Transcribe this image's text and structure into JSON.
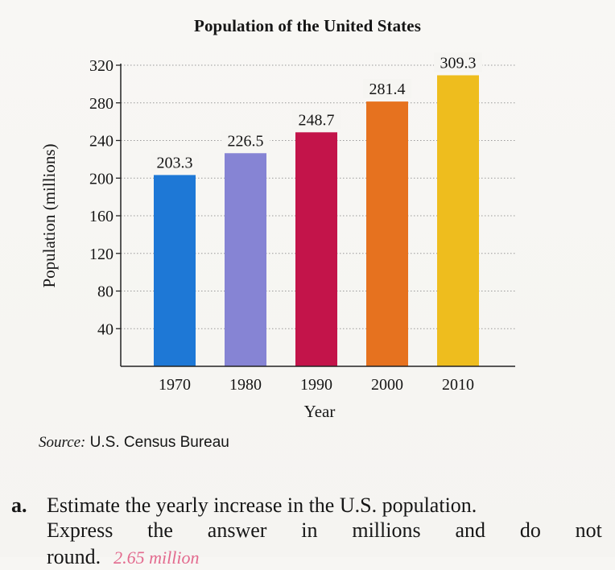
{
  "chart_data": {
    "type": "bar",
    "title": "Population of the United States",
    "xlabel": "Year",
    "ylabel": "Population (millions)",
    "categories": [
      "1970",
      "1980",
      "1990",
      "2000",
      "2010"
    ],
    "values": [
      203.3,
      226.5,
      248.7,
      281.4,
      309.3
    ],
    "value_labels": [
      "203.3",
      "226.5",
      "248.7",
      "281.4",
      "309.3"
    ],
    "bar_colors": [
      "#1e78d6",
      "#8684d4",
      "#c3144a",
      "#e6721f",
      "#eebd1e"
    ],
    "ylim": [
      0,
      320
    ],
    "yticks": [
      40,
      80,
      120,
      160,
      200,
      240,
      280,
      320
    ],
    "grid": true,
    "legend": "none"
  },
  "source": {
    "label": "Source:",
    "text": "U.S. Census Bureau"
  },
  "question": {
    "letter": "a.",
    "line1": "Estimate the yearly increase in the U.S. population.",
    "line2_words": [
      "Express",
      "the",
      "answer",
      "in",
      "millions",
      "and",
      "do",
      "not"
    ],
    "line3": "round.",
    "handwritten": "2.65 million"
  }
}
